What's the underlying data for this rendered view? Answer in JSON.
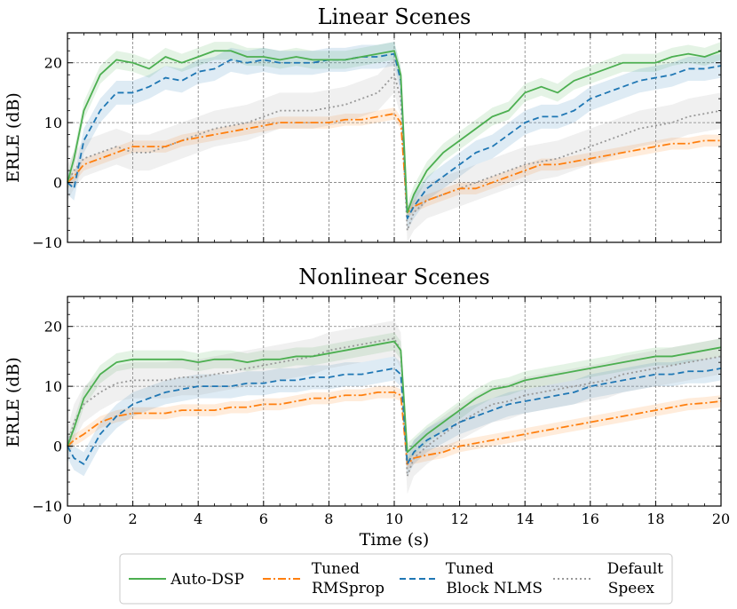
{
  "colors": {
    "auto_dsp": "#4caf50",
    "rmsprop": "#ff7f0e",
    "nlms": "#1f77b4",
    "speex": "#999999",
    "grid": "#7f7f7f"
  },
  "legend": {
    "placement": "bottom-center",
    "entries": [
      {
        "line1": "Auto-DSP",
        "line2": ""
      },
      {
        "line1": "Tuned",
        "line2": "RMSprop"
      },
      {
        "line1": "Tuned",
        "line2": "Block NLMS"
      },
      {
        "line1": "Default",
        "line2": "Speex"
      }
    ]
  },
  "chart_data": [
    {
      "type": "line",
      "title": "Linear Scenes",
      "xlabel": "",
      "ylabel": "ERLE (dB)",
      "xlim": [
        0,
        20
      ],
      "ylim": [
        -10,
        25
      ],
      "grid": true,
      "xticks": [
        0,
        2,
        4,
        6,
        8,
        10,
        12,
        14,
        16,
        18,
        20
      ],
      "yticks": [
        -10,
        0,
        10,
        20
      ],
      "ytick_labels": [
        "−10",
        "0",
        "10",
        "20"
      ],
      "x": [
        0,
        0.2,
        0.5,
        1,
        1.5,
        2,
        2.5,
        3,
        3.5,
        4,
        4.5,
        5,
        5.5,
        6,
        6.5,
        7,
        7.5,
        8,
        8.5,
        9,
        9.5,
        10,
        10.2,
        10.4,
        10.6,
        11,
        11.5,
        12,
        12.5,
        13,
        13.5,
        14,
        14.5,
        15,
        15.5,
        16,
        16.5,
        17,
        17.5,
        18,
        18.5,
        19,
        19.5,
        20
      ],
      "series": [
        {
          "name": "Auto-DSP",
          "band": 1.5,
          "values": [
            0,
            4,
            12,
            18,
            20.5,
            20,
            19,
            21,
            20,
            21,
            22,
            22,
            21,
            21,
            20.5,
            21,
            20.5,
            20.5,
            20.5,
            21,
            21.5,
            22,
            18,
            -5,
            -2,
            2,
            5,
            7,
            9,
            11,
            12,
            15,
            16,
            15,
            17,
            18,
            19,
            20,
            20,
            20,
            21,
            21.5,
            21,
            22
          ]
        },
        {
          "name": "Tuned RMSprop",
          "band": 1.0,
          "values": [
            0,
            1,
            3,
            4,
            5,
            6,
            6,
            6,
            7,
            7.5,
            8,
            8.5,
            9,
            9.5,
            10,
            10,
            10,
            10,
            10.5,
            10.5,
            11,
            11.5,
            10,
            -5,
            -4,
            -3,
            -2,
            -1,
            -1,
            0,
            1,
            2,
            3,
            3,
            3.5,
            4,
            4.5,
            5,
            5.5,
            6,
            6.5,
            6.5,
            7,
            7
          ]
        },
        {
          "name": "Tuned Block NLMS",
          "band": 2.0,
          "values": [
            0,
            -1,
            7,
            12,
            15,
            15,
            16,
            17.5,
            17,
            18.5,
            19,
            20.5,
            20,
            20.5,
            20,
            20,
            20,
            20.5,
            20.5,
            21,
            21,
            21.5,
            17,
            -6,
            -4,
            -1,
            1,
            3,
            5,
            6,
            8,
            10,
            11,
            11,
            12,
            14,
            15,
            16,
            17,
            17.5,
            18,
            19,
            19,
            19.5
          ]
        },
        {
          "name": "Default Speex",
          "band": 3.0,
          "values": [
            0,
            2,
            4,
            5,
            6,
            5,
            5,
            6,
            7,
            8,
            9,
            9.5,
            10,
            11,
            12,
            12,
            12,
            12.5,
            13,
            14,
            15,
            18,
            14,
            -8,
            -5,
            -3,
            -2,
            -1,
            0,
            1,
            2,
            3,
            3.5,
            4,
            5,
            6,
            7,
            8,
            9,
            9.5,
            10,
            11,
            11.5,
            12
          ]
        }
      ]
    },
    {
      "type": "line",
      "title": "Nonlinear Scenes",
      "xlabel": "Time (s)",
      "ylabel": "ERLE (dB)",
      "xlim": [
        0,
        20
      ],
      "ylim": [
        -10,
        25
      ],
      "grid": true,
      "xticks": [
        0,
        2,
        4,
        6,
        8,
        10,
        12,
        14,
        16,
        18,
        20
      ],
      "xtick_labels": [
        "0",
        "2",
        "4",
        "6",
        "8",
        "10",
        "12",
        "14",
        "16",
        "18",
        "20"
      ],
      "yticks": [
        -10,
        0,
        10,
        20
      ],
      "ytick_labels": [
        "−10",
        "0",
        "10",
        "20"
      ],
      "x": [
        0,
        0.2,
        0.5,
        1,
        1.5,
        2,
        2.5,
        3,
        3.5,
        4,
        4.5,
        5,
        5.5,
        6,
        6.5,
        7,
        7.5,
        8,
        8.5,
        9,
        9.5,
        10,
        10.2,
        10.4,
        10.6,
        11,
        11.5,
        12,
        12.5,
        13,
        13.5,
        14,
        14.5,
        15,
        15.5,
        16,
        16.5,
        17,
        17.5,
        18,
        18.5,
        19,
        19.5,
        20
      ],
      "series": [
        {
          "name": "Auto-DSP",
          "band": 1.5,
          "values": [
            0,
            3,
            8,
            12,
            14,
            14.5,
            14.5,
            14.5,
            14.5,
            14,
            14.5,
            14.5,
            14,
            14.5,
            14.5,
            15,
            15,
            15.5,
            16,
            16.5,
            17,
            17.5,
            16,
            -1,
            0,
            2,
            4,
            6,
            8,
            9.5,
            10,
            11,
            11.5,
            12,
            12.5,
            13,
            13.5,
            14,
            14.5,
            15,
            15,
            15.5,
            16,
            16.5
          ]
        },
        {
          "name": "Tuned RMSprop",
          "band": 1.0,
          "values": [
            0,
            1,
            2,
            4,
            5,
            5.5,
            5.5,
            5.5,
            6,
            6,
            6,
            6.5,
            6.5,
            7,
            7,
            7.5,
            8,
            8,
            8.5,
            8.5,
            9,
            9,
            8.5,
            -3,
            -2,
            -1.5,
            -1,
            0,
            0.5,
            1,
            1.5,
            2,
            2.5,
            3,
            3.5,
            4,
            4.5,
            5,
            5.5,
            6,
            6.5,
            7,
            7.2,
            7.5
          ]
        },
        {
          "name": "Tuned Block NLMS",
          "band": 2.0,
          "values": [
            0,
            -2,
            -3,
            2,
            5,
            7,
            8,
            9,
            9.5,
            10,
            10,
            10,
            10.5,
            10.5,
            11,
            11,
            11.5,
            11.5,
            12,
            12,
            12.5,
            13,
            12,
            -3,
            -1,
            1,
            2.5,
            4,
            5,
            6,
            7,
            7.5,
            8,
            8.5,
            9,
            10,
            10.5,
            11,
            11.5,
            12,
            12,
            12.5,
            12.5,
            13
          ]
        },
        {
          "name": "Default Speex",
          "band": 3.0,
          "values": [
            0,
            4,
            7,
            9,
            10.5,
            11,
            11,
            11,
            11.5,
            11.5,
            12,
            12.5,
            13,
            13.5,
            14,
            14.5,
            15,
            16,
            16.5,
            17,
            17.5,
            18,
            16,
            -5,
            -2,
            0,
            2,
            4,
            5.5,
            7,
            7.5,
            8.5,
            9,
            9.5,
            10,
            10.5,
            11,
            12,
            12.5,
            13,
            13.5,
            14,
            14.5,
            15
          ]
        }
      ]
    }
  ]
}
